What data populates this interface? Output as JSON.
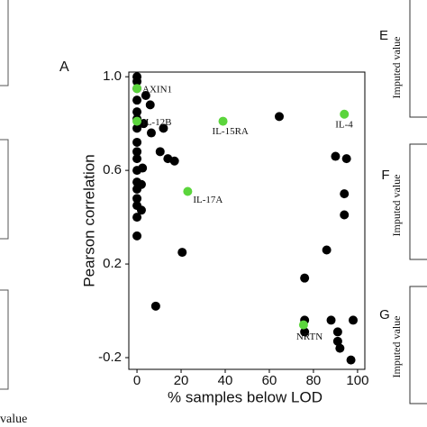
{
  "chart_data": {
    "type": "scatter",
    "panel_label": "A",
    "x_label": "% samples below LOD",
    "y_label": "Pearson correlation",
    "xlim": [
      -3.7,
      103.3
    ],
    "ylim": [
      -0.25,
      1.02
    ],
    "xticks": [
      0,
      20,
      40,
      60,
      80,
      100
    ],
    "yticks": [
      {
        "value": -0.2,
        "label": "-0.2"
      },
      {
        "value": 0.2,
        "label": "0.2"
      },
      {
        "value": 0.6,
        "label": "0.6"
      },
      {
        "value": 1.0,
        "label": "1.0"
      }
    ],
    "series": [
      {
        "color": "#000000",
        "x": [
          0,
          0,
          0,
          0,
          0,
          0,
          0,
          0,
          0,
          0,
          0,
          0,
          0,
          0,
          0,
          0,
          0,
          2,
          2,
          2.5,
          4,
          3,
          6,
          6.5,
          12,
          10.5,
          14,
          17,
          20.5,
          8.5,
          64.5,
          76,
          76,
          76,
          86,
          90,
          95,
          94,
          94,
          88,
          91,
          91,
          92,
          98,
          97
        ],
        "values": [
          1.0,
          0.98,
          0.95,
          0.9,
          0.85,
          0.82,
          0.78,
          0.72,
          0.68,
          0.65,
          0.6,
          0.55,
          0.52,
          0.48,
          0.45,
          0.4,
          0.32,
          0.54,
          0.43,
          0.61,
          0.92,
          0.8,
          0.88,
          0.76,
          0.78,
          0.68,
          0.65,
          0.64,
          0.25,
          0.02,
          0.83,
          0.14,
          -0.04,
          -0.09,
          0.26,
          0.66,
          0.65,
          0.5,
          0.41,
          -0.04,
          -0.09,
          -0.13,
          -0.16,
          -0.04,
          -0.21
        ]
      },
      {
        "color": "#5bd53c",
        "x": [
          0,
          0,
          39,
          94,
          23,
          75.5
        ],
        "values": [
          0.95,
          0.81,
          0.81,
          0.84,
          0.51,
          -0.06
        ],
        "point_labels": [
          "AXIN1",
          "IL-12B",
          "IL-15RA",
          "IL-4",
          "IL-17A",
          "NRTN"
        ]
      }
    ]
  },
  "side_panels": {
    "labels": [
      "E",
      "F",
      "G"
    ],
    "y_label": "Imputed value",
    "left_x_label": "value"
  }
}
